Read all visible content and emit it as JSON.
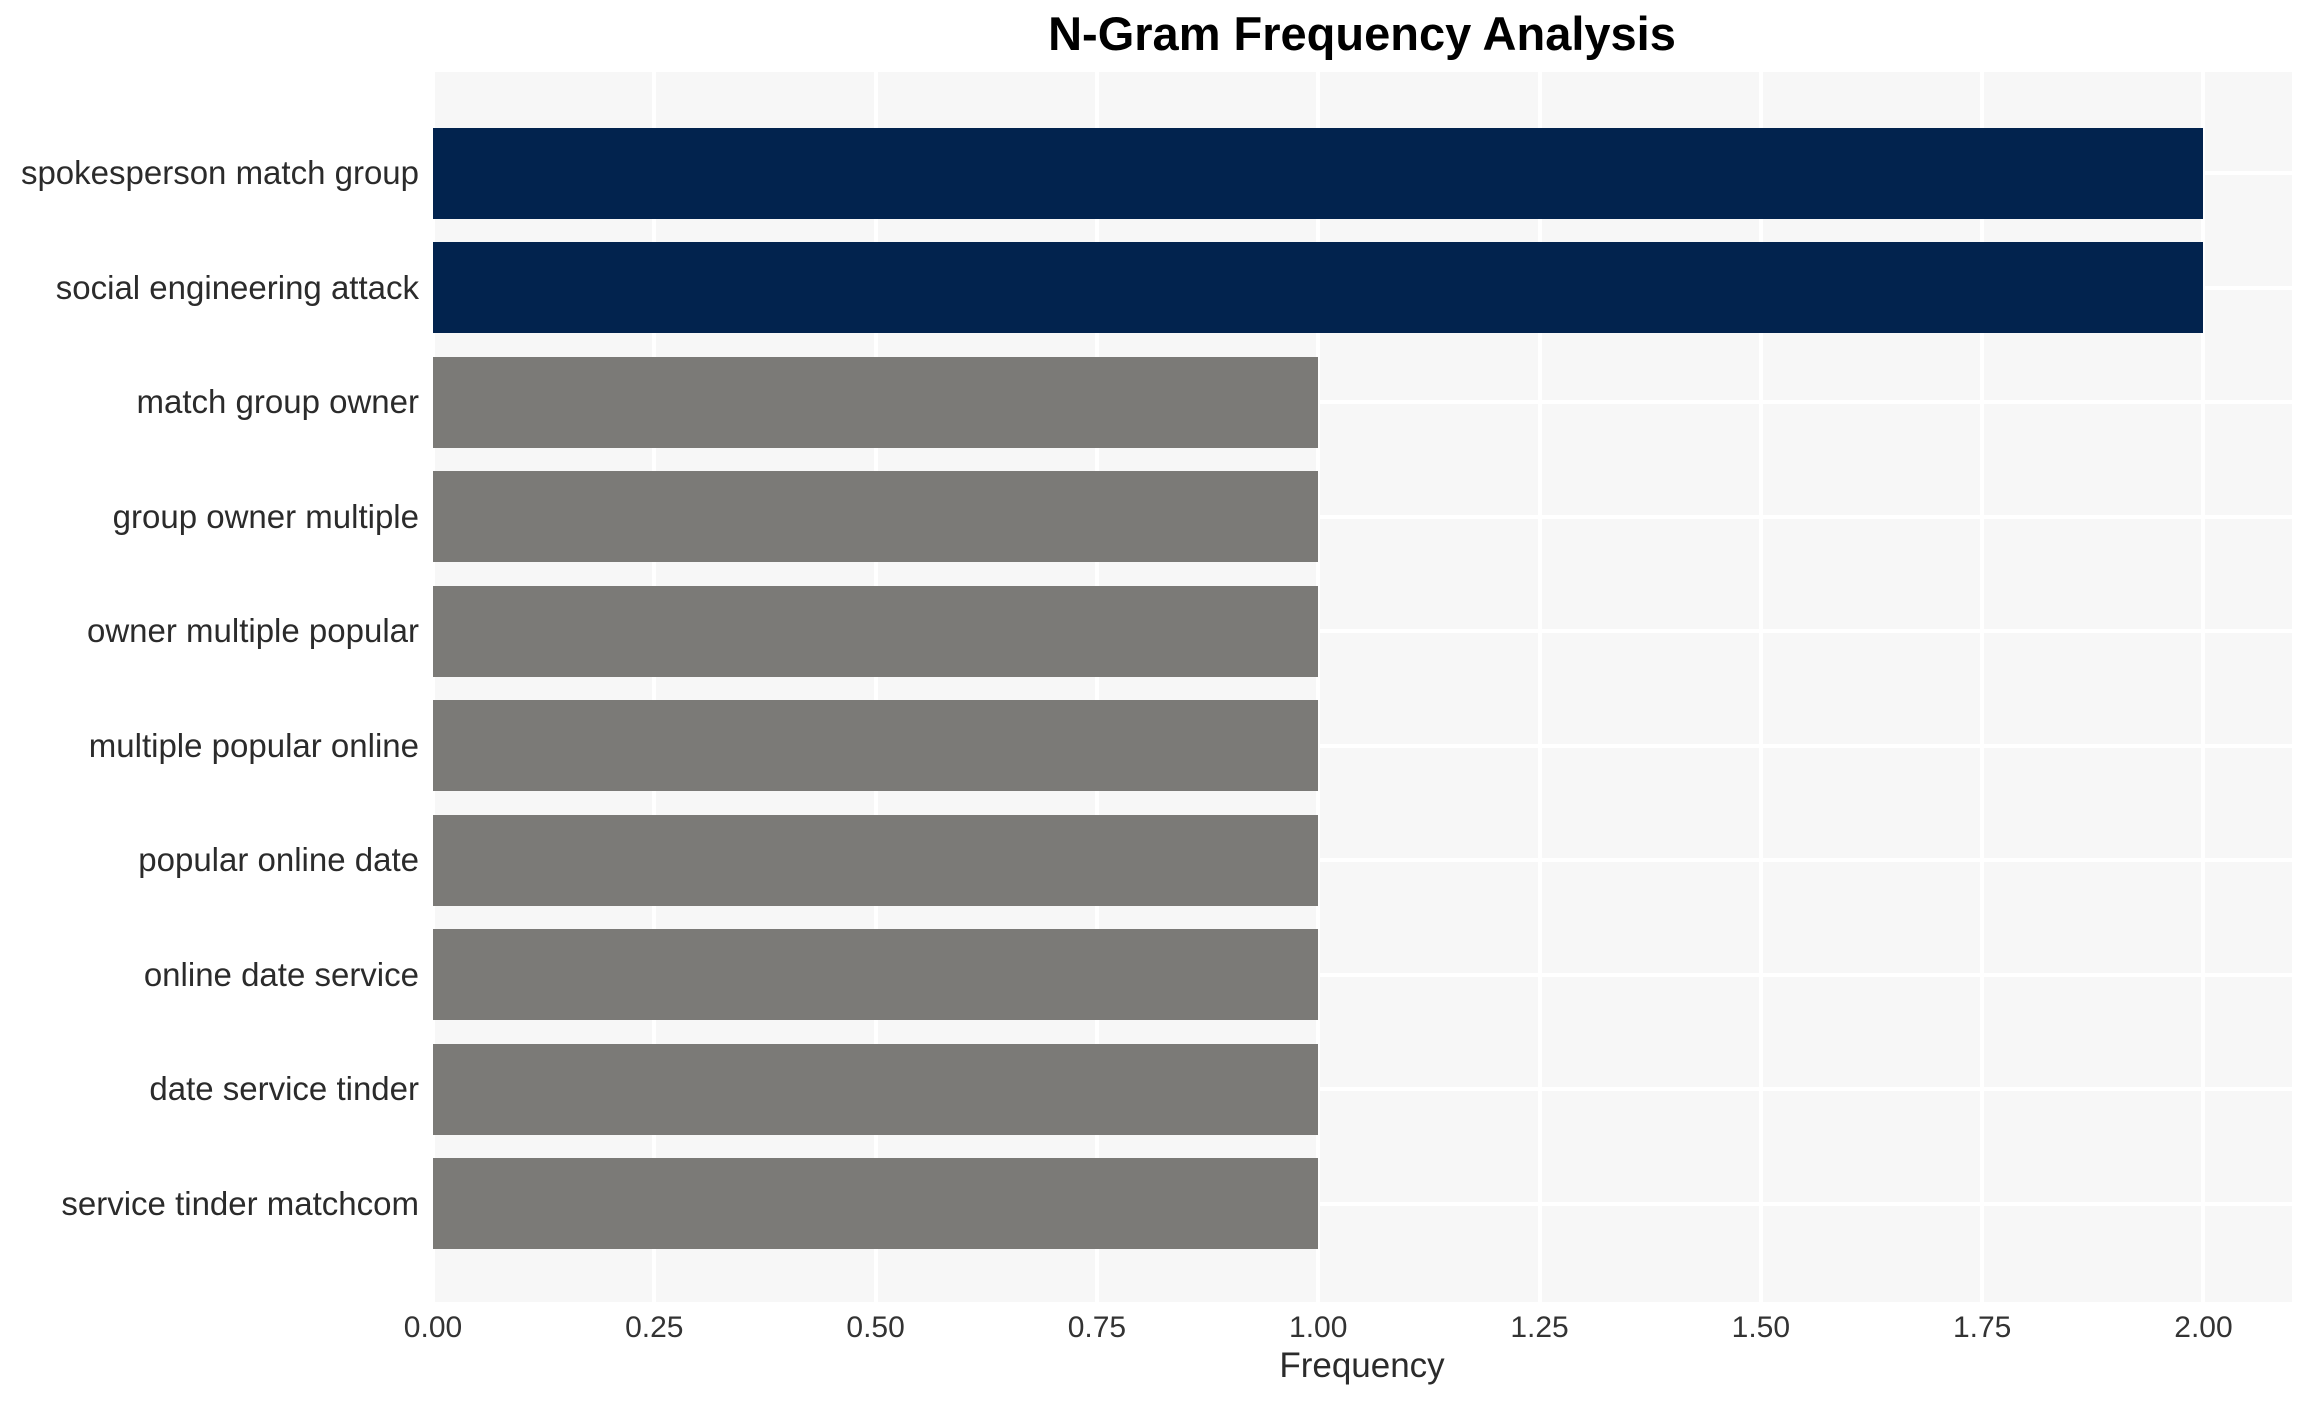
{
  "chart_data": {
    "type": "bar",
    "orientation": "horizontal",
    "title": "N-Gram Frequency Analysis",
    "xlabel": "Frequency",
    "ylabel": "",
    "categories": [
      "spokesperson match group",
      "social engineering attack",
      "match group owner",
      "group owner multiple",
      "owner multiple popular",
      "multiple popular online",
      "popular online date",
      "online date service",
      "date service tinder",
      "service tinder matchcom"
    ],
    "values": [
      2,
      2,
      1,
      1,
      1,
      1,
      1,
      1,
      1,
      1
    ],
    "bar_colors": [
      "#02234e",
      "#02234e",
      "#7b7a77",
      "#7b7a77",
      "#7b7a77",
      "#7b7a77",
      "#7b7a77",
      "#7b7a77",
      "#7b7a77",
      "#7b7a77"
    ],
    "xlim": [
      0,
      2.1
    ],
    "xticks": [
      0.0,
      0.25,
      0.5,
      0.75,
      1.0,
      1.25,
      1.5,
      1.75,
      2.0
    ],
    "xtick_labels": [
      "0.00",
      "0.25",
      "0.50",
      "0.75",
      "1.00",
      "1.25",
      "1.50",
      "1.75",
      "2.00"
    ],
    "grid": true,
    "legend": false,
    "colors": {
      "highlight": "#02234e",
      "default": "#7b7a77",
      "plot_background": "#f7f7f7",
      "figure_background": "#ffffff",
      "gridline": "#ffffff",
      "text": "#2b2b2b",
      "title_text": "#000000"
    }
  }
}
